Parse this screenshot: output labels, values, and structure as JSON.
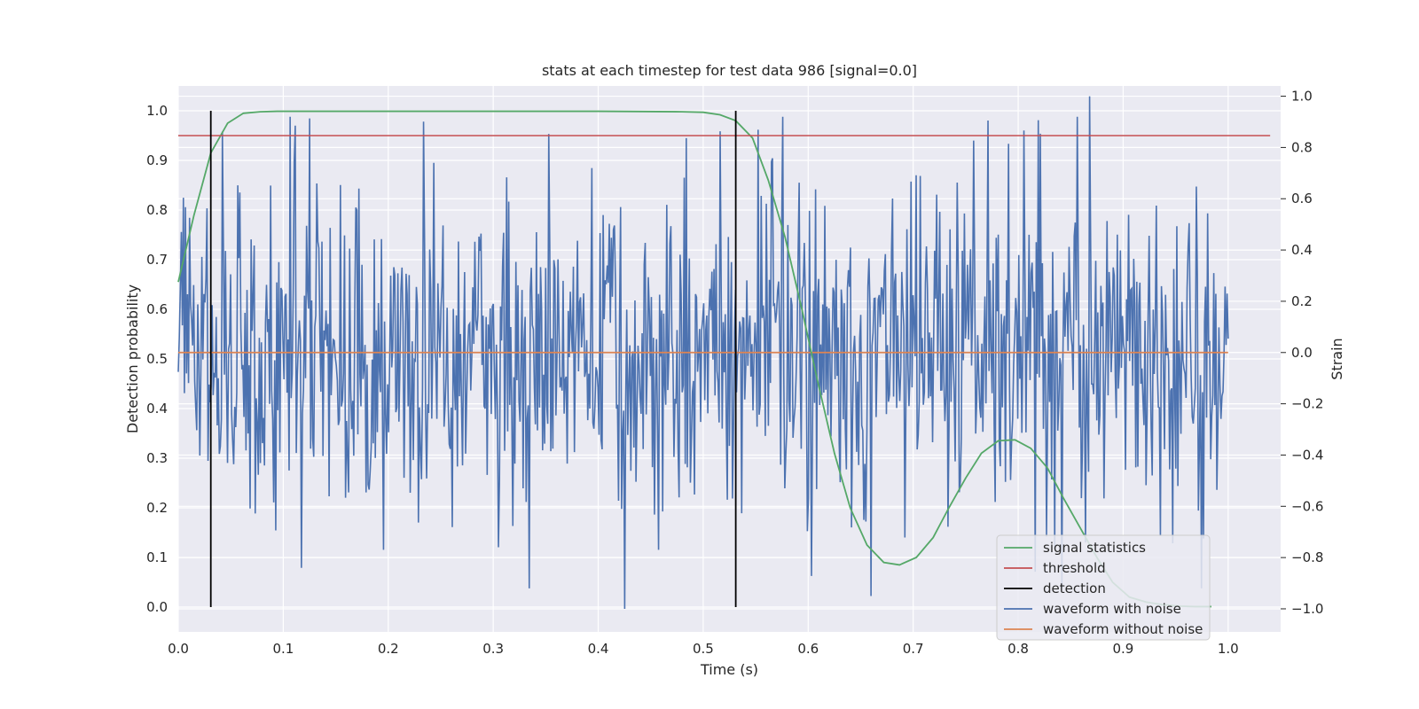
{
  "chart_data": {
    "type": "line",
    "title": "stats at each timestep for test data 986 [signal=0.0]",
    "xlabel": "Time (s)",
    "ylabel": "Detection probability",
    "y2label": "Strain",
    "xlim": [
      0.0,
      1.05
    ],
    "ylim": [
      -0.05,
      1.05
    ],
    "y2lim": [
      -1.09,
      1.04
    ],
    "xticks": [
      "0.0",
      "0.1",
      "0.2",
      "0.3",
      "0.4",
      "0.5",
      "0.6",
      "0.7",
      "0.8",
      "0.9",
      "1.0"
    ],
    "yticks": [
      "0.0",
      "0.1",
      "0.2",
      "0.3",
      "0.4",
      "0.5",
      "0.6",
      "0.7",
      "0.8",
      "0.9",
      "1.0"
    ],
    "y2ticks": [
      "−1.0",
      "−0.8",
      "−0.6",
      "−0.4",
      "−0.2",
      "0.0",
      "0.2",
      "0.4",
      "0.6",
      "0.8",
      "1.0"
    ],
    "grid": true,
    "legend_position": "lower-right",
    "legend": [
      "signal statistics",
      "threshold",
      "detection",
      "waveform with noise",
      "waveform without noise"
    ],
    "colors": {
      "signal statistics": "#55a868",
      "threshold": "#c44e52",
      "detection": "#000000",
      "waveform with noise": "#4c72b0",
      "waveform without noise": "#dd8452",
      "background": "#eaeaf2",
      "grid": "#ffffff"
    },
    "series": [
      {
        "name": "signal statistics",
        "axis": "left",
        "x": [
          0.0,
          0.015,
          0.031,
          0.047,
          0.062,
          0.078,
          0.094,
          0.109,
          0.2,
          0.3,
          0.4,
          0.48,
          0.5,
          0.516,
          0.531,
          0.547,
          0.562,
          0.578,
          0.594,
          0.609,
          0.625,
          0.64,
          0.656,
          0.672,
          0.687,
          0.703,
          0.719,
          0.734,
          0.75,
          0.765,
          0.781,
          0.797,
          0.812,
          0.828,
          0.843,
          0.859,
          0.875,
          0.89,
          0.906,
          0.922,
          0.937,
          0.953,
          0.968,
          0.984
        ],
        "y": [
          0.655,
          0.79,
          0.915,
          0.975,
          0.995,
          0.998,
          0.999,
          0.999,
          0.999,
          0.999,
          0.999,
          0.998,
          0.997,
          0.992,
          0.98,
          0.945,
          0.86,
          0.745,
          0.6,
          0.455,
          0.31,
          0.2,
          0.125,
          0.09,
          0.085,
          0.1,
          0.14,
          0.2,
          0.26,
          0.31,
          0.335,
          0.337,
          0.32,
          0.28,
          0.22,
          0.16,
          0.1,
          0.05,
          0.02,
          0.01,
          0.005,
          0.002,
          0.001,
          0.001
        ]
      },
      {
        "name": "threshold",
        "axis": "left",
        "x": [
          0.0,
          1.04
        ],
        "y": [
          0.95,
          0.95
        ]
      },
      {
        "name": "detection",
        "axis": "left",
        "x": [
          0.031,
          0.531
        ],
        "y0": 0.0,
        "y1": 1.0
      },
      {
        "name": "waveform with noise",
        "axis": "right",
        "x_range": [
          0.0,
          1.0
        ],
        "n_points": 1024,
        "noise_std": 0.33,
        "anchors": [
          {
            "x": 0.425,
            "y": -1.0
          },
          {
            "x": 0.868,
            "y": 1.0
          },
          {
            "x": 0.243,
            "y": 0.74
          },
          {
            "x": 0.117,
            "y": -0.84
          },
          {
            "x": 0.66,
            "y": -0.95
          },
          {
            "x": 0.999,
            "y": 0.23
          }
        ]
      },
      {
        "name": "waveform without noise",
        "axis": "right",
        "x": [
          0.0,
          1.0
        ],
        "y": [
          0.0,
          0.0
        ]
      }
    ]
  }
}
